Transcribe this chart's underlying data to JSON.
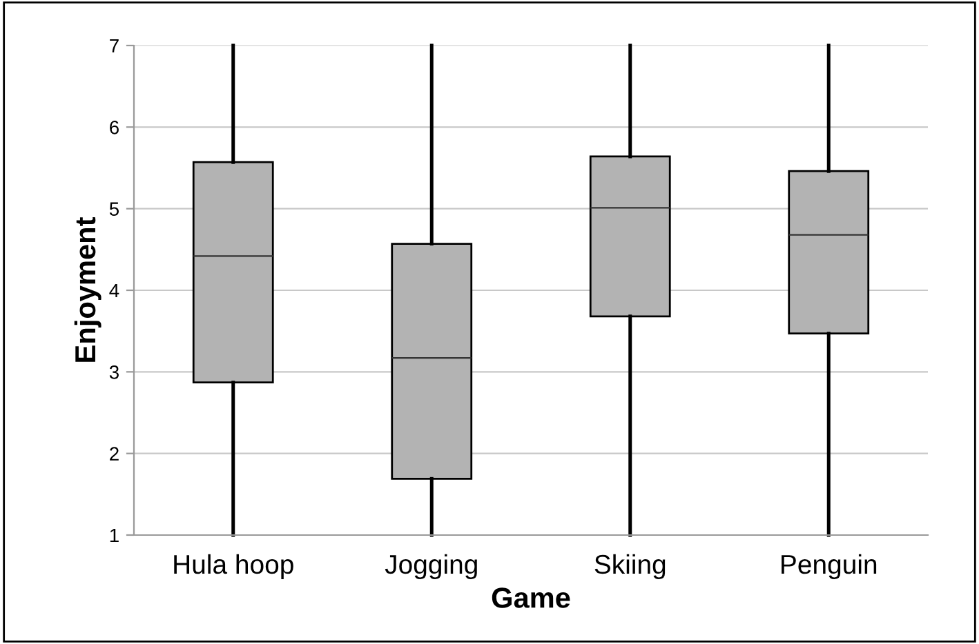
{
  "chart_data": {
    "type": "box",
    "xlabel": "Game",
    "ylabel": "Enjoyment",
    "categories": [
      "Hula hoop",
      "Jogging",
      "Skiing",
      "Penguin"
    ],
    "series": [
      {
        "color": "#b3b3b3",
        "boxes": [
          {
            "low": 1,
            "q1": 2.87,
            "median": 4.42,
            "q3": 5.57,
            "high": 7
          },
          {
            "low": 1,
            "q1": 1.69,
            "median": 3.17,
            "q3": 4.57,
            "high": 7
          },
          {
            "low": 1,
            "q1": 3.68,
            "median": 5.01,
            "q3": 5.64,
            "high": 7
          },
          {
            "low": 1,
            "q1": 3.47,
            "median": 4.68,
            "q3": 5.46,
            "high": 7
          }
        ]
      }
    ],
    "ylim": [
      1,
      7
    ],
    "yticks": [
      1,
      2,
      3,
      4,
      5,
      6,
      7
    ],
    "grid": "y",
    "legend": false
  }
}
